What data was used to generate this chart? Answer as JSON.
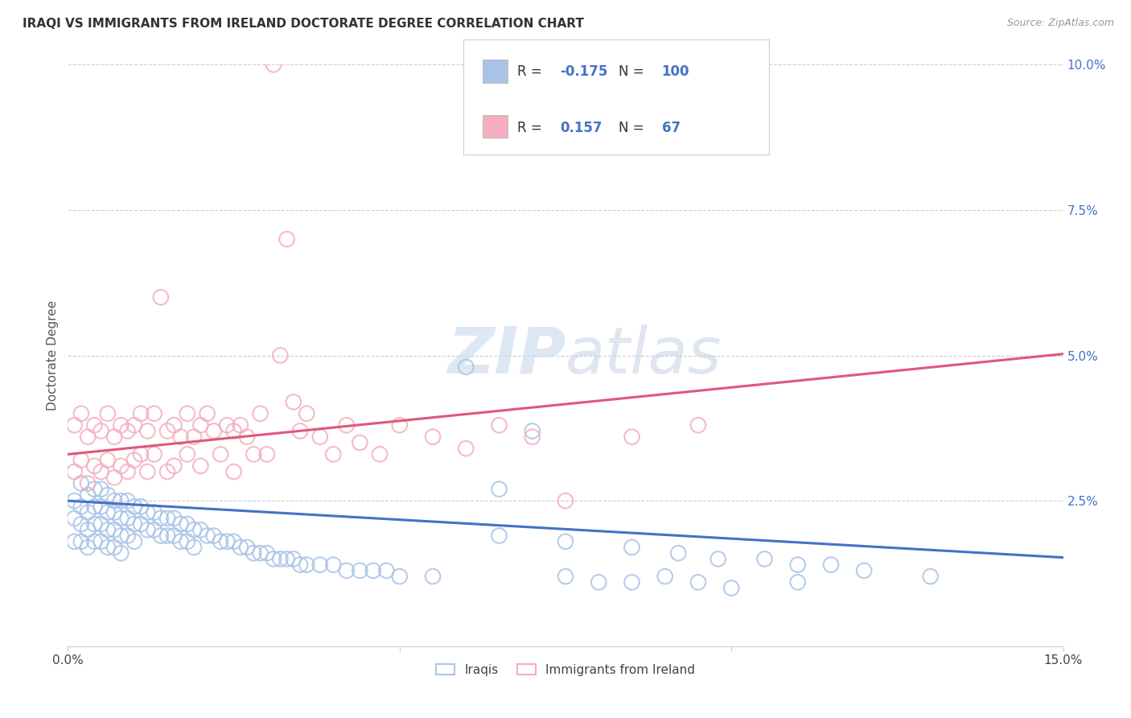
{
  "title": "IRAQI VS IMMIGRANTS FROM IRELAND DOCTORATE DEGREE CORRELATION CHART",
  "source": "Source: ZipAtlas.com",
  "ylabel": "Doctorate Degree",
  "xlim": [
    0.0,
    0.15
  ],
  "ylim": [
    0.0,
    0.1
  ],
  "xticks": [
    0.0,
    0.05,
    0.1,
    0.15
  ],
  "xtick_labels": [
    "0.0%",
    "",
    "",
    "15.0%"
  ],
  "ytick_labels_right": [
    "",
    "2.5%",
    "5.0%",
    "7.5%",
    "10.0%"
  ],
  "yticks_right": [
    0.0,
    0.025,
    0.05,
    0.075,
    0.1
  ],
  "blue_color": "#aac4e8",
  "pink_color": "#f4aec0",
  "blue_line_color": "#4472c4",
  "pink_line_color": "#e05878",
  "R_blue": -0.175,
  "N_blue": 100,
  "R_pink": 0.157,
  "N_pink": 67,
  "legend_label_blue": "Iraqis",
  "legend_label_pink": "Immigrants from Ireland",
  "watermark": "ZIPatlas",
  "blue_line_y_intercept": 0.025,
  "blue_line_slope": -0.065,
  "pink_line_y_intercept": 0.033,
  "pink_line_slope": 0.115,
  "blue_scatter_x": [
    0.001,
    0.001,
    0.001,
    0.002,
    0.002,
    0.002,
    0.002,
    0.003,
    0.003,
    0.003,
    0.003,
    0.004,
    0.004,
    0.004,
    0.004,
    0.005,
    0.005,
    0.005,
    0.005,
    0.006,
    0.006,
    0.006,
    0.006,
    0.007,
    0.007,
    0.007,
    0.007,
    0.008,
    0.008,
    0.008,
    0.008,
    0.009,
    0.009,
    0.009,
    0.01,
    0.01,
    0.01,
    0.011,
    0.011,
    0.012,
    0.012,
    0.013,
    0.013,
    0.014,
    0.014,
    0.015,
    0.015,
    0.016,
    0.016,
    0.017,
    0.017,
    0.018,
    0.018,
    0.019,
    0.019,
    0.02,
    0.021,
    0.022,
    0.023,
    0.024,
    0.025,
    0.026,
    0.027,
    0.028,
    0.029,
    0.03,
    0.031,
    0.032,
    0.033,
    0.034,
    0.035,
    0.036,
    0.038,
    0.04,
    0.042,
    0.044,
    0.046,
    0.048,
    0.05,
    0.055,
    0.06,
    0.065,
    0.07,
    0.075,
    0.08,
    0.085,
    0.09,
    0.095,
    0.1,
    0.11,
    0.065,
    0.075,
    0.085,
    0.092,
    0.098,
    0.105,
    0.11,
    0.115,
    0.12,
    0.13
  ],
  "blue_scatter_y": [
    0.025,
    0.022,
    0.018,
    0.028,
    0.024,
    0.021,
    0.018,
    0.026,
    0.023,
    0.02,
    0.017,
    0.027,
    0.024,
    0.021,
    0.018,
    0.027,
    0.024,
    0.021,
    0.018,
    0.026,
    0.023,
    0.02,
    0.017,
    0.025,
    0.023,
    0.02,
    0.017,
    0.025,
    0.022,
    0.019,
    0.016,
    0.025,
    0.022,
    0.019,
    0.024,
    0.021,
    0.018,
    0.024,
    0.021,
    0.023,
    0.02,
    0.023,
    0.02,
    0.022,
    0.019,
    0.022,
    0.019,
    0.022,
    0.019,
    0.021,
    0.018,
    0.021,
    0.018,
    0.02,
    0.017,
    0.02,
    0.019,
    0.019,
    0.018,
    0.018,
    0.018,
    0.017,
    0.017,
    0.016,
    0.016,
    0.016,
    0.015,
    0.015,
    0.015,
    0.015,
    0.014,
    0.014,
    0.014,
    0.014,
    0.013,
    0.013,
    0.013,
    0.013,
    0.012,
    0.012,
    0.048,
    0.027,
    0.037,
    0.012,
    0.011,
    0.011,
    0.012,
    0.011,
    0.01,
    0.011,
    0.019,
    0.018,
    0.017,
    0.016,
    0.015,
    0.015,
    0.014,
    0.014,
    0.013,
    0.012
  ],
  "pink_scatter_x": [
    0.001,
    0.001,
    0.002,
    0.002,
    0.003,
    0.003,
    0.004,
    0.004,
    0.005,
    0.005,
    0.006,
    0.006,
    0.007,
    0.007,
    0.008,
    0.008,
    0.009,
    0.009,
    0.01,
    0.01,
    0.011,
    0.011,
    0.012,
    0.012,
    0.013,
    0.013,
    0.014,
    0.015,
    0.015,
    0.016,
    0.016,
    0.017,
    0.018,
    0.018,
    0.019,
    0.02,
    0.02,
    0.021,
    0.022,
    0.023,
    0.024,
    0.025,
    0.025,
    0.026,
    0.027,
    0.028,
    0.029,
    0.03,
    0.031,
    0.032,
    0.033,
    0.034,
    0.035,
    0.036,
    0.038,
    0.04,
    0.042,
    0.044,
    0.047,
    0.05,
    0.055,
    0.06,
    0.065,
    0.07,
    0.075,
    0.085,
    0.095
  ],
  "pink_scatter_y": [
    0.038,
    0.03,
    0.04,
    0.032,
    0.036,
    0.028,
    0.038,
    0.031,
    0.037,
    0.03,
    0.04,
    0.032,
    0.036,
    0.029,
    0.038,
    0.031,
    0.037,
    0.03,
    0.038,
    0.032,
    0.04,
    0.033,
    0.037,
    0.03,
    0.04,
    0.033,
    0.06,
    0.037,
    0.03,
    0.038,
    0.031,
    0.036,
    0.04,
    0.033,
    0.036,
    0.038,
    0.031,
    0.04,
    0.037,
    0.033,
    0.038,
    0.037,
    0.03,
    0.038,
    0.036,
    0.033,
    0.04,
    0.033,
    0.1,
    0.05,
    0.07,
    0.042,
    0.037,
    0.04,
    0.036,
    0.033,
    0.038,
    0.035,
    0.033,
    0.038,
    0.036,
    0.034,
    0.038,
    0.036,
    0.025,
    0.036,
    0.038
  ]
}
